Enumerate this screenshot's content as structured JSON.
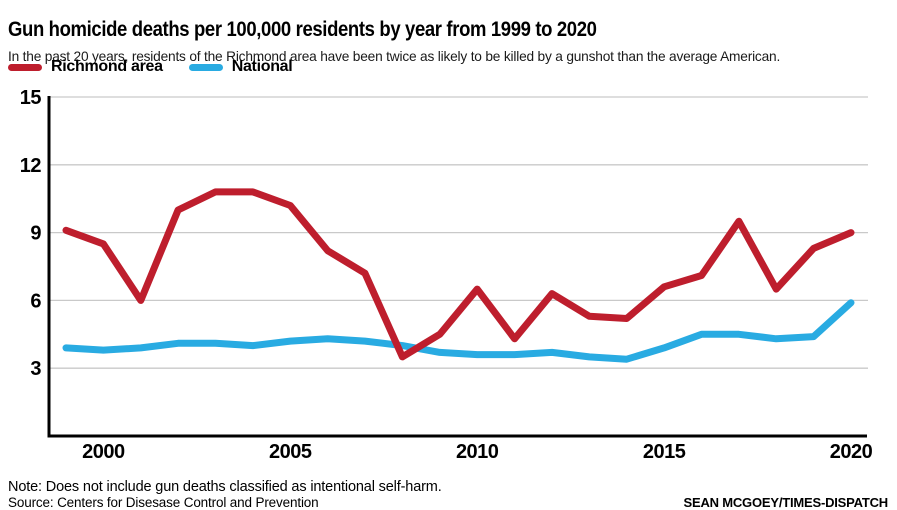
{
  "chart_data": {
    "type": "line",
    "title": "Gun homicide deaths per 100,000 residents by year from 1999 to 2020",
    "subtitle": "In the past 20 years, residents of the Richmond area have been twice as likely to be killed by a gunshot than the average American.",
    "x": [
      1999,
      2000,
      2001,
      2002,
      2003,
      2004,
      2005,
      2006,
      2007,
      2008,
      2009,
      2010,
      2011,
      2012,
      2013,
      2014,
      2015,
      2016,
      2017,
      2018,
      2019,
      2020
    ],
    "series": [
      {
        "name": "Richmond area",
        "color": "#be1e2d",
        "values": [
          9.1,
          8.5,
          6.0,
          10.0,
          10.8,
          10.8,
          10.2,
          8.2,
          7.2,
          3.5,
          4.5,
          6.5,
          4.3,
          6.3,
          5.3,
          5.2,
          6.6,
          7.1,
          9.5,
          6.5,
          8.3,
          9.0
        ]
      },
      {
        "name": "National",
        "color": "#29abe2",
        "values": [
          3.9,
          3.8,
          3.9,
          4.1,
          4.1,
          4.0,
          4.2,
          4.3,
          4.2,
          4.0,
          3.7,
          3.6,
          3.6,
          3.7,
          3.5,
          3.4,
          3.9,
          4.5,
          4.5,
          4.3,
          4.4,
          5.9
        ]
      }
    ],
    "ylim": [
      0,
      15
    ],
    "yticks": [
      3,
      6,
      9,
      12,
      15
    ],
    "xticks": [
      2000,
      2005,
      2010,
      2015,
      2020
    ],
    "grid": true,
    "legend_position": "top-left",
    "xlabel": "",
    "ylabel": ""
  },
  "colors": {
    "axis": "#000000",
    "gridline": "#c9c9c9"
  },
  "footer": {
    "note": "Note: Does not include gun deaths classified as intentional self-harm.",
    "source": "Source: Centers for Disesase Control and Prevention",
    "credit": "SEAN MCGOEY/TIMES-DISPATCH"
  }
}
